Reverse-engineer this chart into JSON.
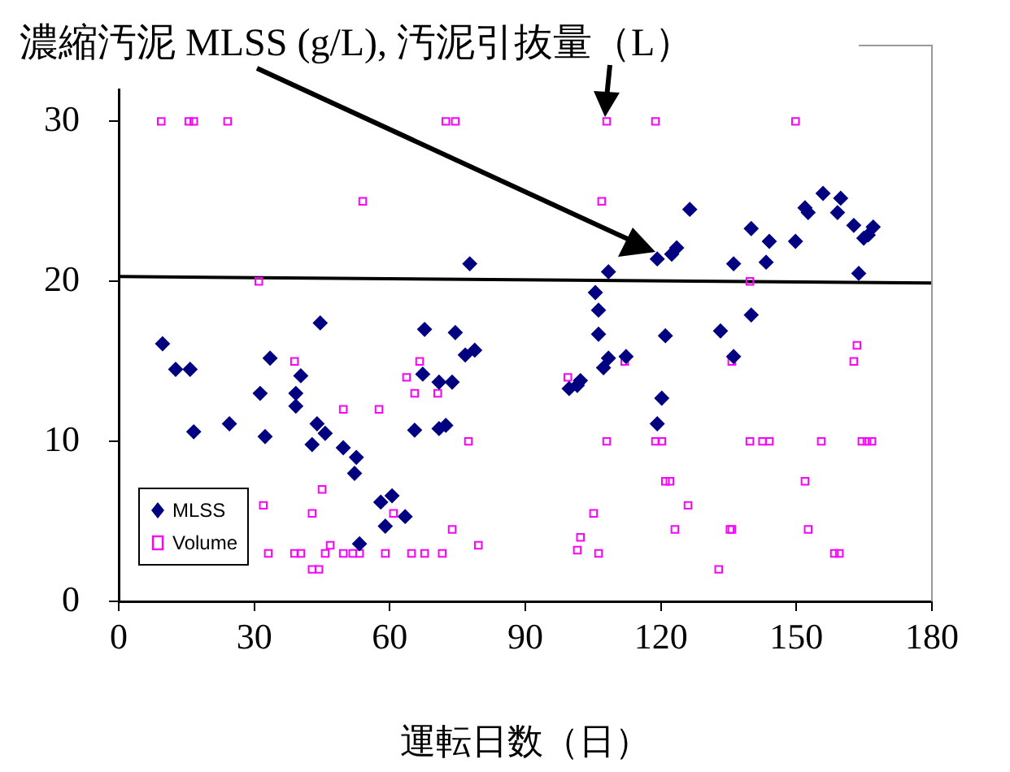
{
  "chart_data": {
    "type": "scatter",
    "title": "濃縮汚泥 MLSS (g/L), 汚泥引抜量（L）",
    "xlabel": "運転日数（日）",
    "xlim": [
      0,
      180
    ],
    "xticks": [
      0,
      30,
      60,
      90,
      120,
      150,
      180
    ],
    "ylim": [
      0,
      32
    ],
    "yticks": [
      0,
      10,
      20,
      30
    ],
    "grid": false,
    "legend": "bottom left",
    "series": [
      {
        "name": "MLSS",
        "color": "#000080",
        "marker": "diamond",
        "x": [
          9.7,
          12.6,
          15.8,
          16.6,
          24.5,
          31.3,
          33.5,
          32.4,
          39.2,
          39.2,
          40.3,
          42.8,
          43.9,
          44.6,
          45.7,
          49.7,
          52.2,
          52.6,
          53.3,
          58,
          59,
          60.5,
          63.4,
          65.5,
          67.3,
          67.7,
          70.9,
          72.4,
          70.9,
          73.8,
          74.5,
          76.7,
          77.7,
          78.8,
          99.7,
          101.5,
          102.2,
          105.5,
          106.2,
          106.2,
          107.3,
          108.4,
          108.4,
          112.3,
          119.2,
          120.2,
          119.2,
          121,
          122.4,
          123.5,
          126.4,
          133.2,
          136.1,
          136.1,
          140,
          140,
          143.3,
          144,
          149.8,
          151.9,
          152.6,
          155.9,
          159.1,
          159.8,
          162.7,
          163.8,
          164.9,
          165.9,
          167
        ],
        "values": [
          16.1,
          14.5,
          14.5,
          10.6,
          11.1,
          13.0,
          15.2,
          10.3,
          13.0,
          12.2,
          14.1,
          9.8,
          11.1,
          17.4,
          10.5,
          9.6,
          8.0,
          9.0,
          3.6,
          6.2,
          4.7,
          6.6,
          5.3,
          10.7,
          14.2,
          17.0,
          10.8,
          11.0,
          13.7,
          13.7,
          16.8,
          15.4,
          21.1,
          15.7,
          13.3,
          13.5,
          13.8,
          19.3,
          18.2,
          16.7,
          14.6,
          15.2,
          20.6,
          15.3,
          21.4,
          12.7,
          11.1,
          16.6,
          21.7,
          22.1,
          24.5,
          16.9,
          15.3,
          21.1,
          23.3,
          17.9,
          21.2,
          22.5,
          22.5,
          24.6,
          24.3,
          25.5,
          24.3,
          25.2,
          23.5,
          20.5,
          22.7,
          22.9,
          23.4
        ]
      },
      {
        "name": "Volume",
        "color": "#ff00ff",
        "marker": "square",
        "x": [
          9.4,
          15.5,
          16.6,
          24.1,
          31,
          38.9,
          32,
          45,
          42.8,
          33.1,
          38.9,
          40.3,
          42.8,
          44.3,
          45.7,
          72.4,
          74.5,
          54,
          66.6,
          63.7,
          65.5,
          70.6,
          49.7,
          57.6,
          77.4,
          60.8,
          73.8,
          79.6,
          46.8,
          49.7,
          51.8,
          53.3,
          59,
          64.8,
          67.7,
          71.6,
          108,
          118.8,
          106.9,
          99.4,
          112,
          108,
          118.8,
          120.2,
          121,
          122,
          126,
          105.1,
          102.2,
          123.1,
          101.5,
          106.2,
          132.8,
          135.3,
          149.8,
          139.7,
          163.4,
          162.7,
          135.7,
          139.7,
          142.5,
          144,
          155.5,
          164.5,
          165.6,
          166.7,
          151.9,
          135.7,
          152.6,
          158.4,
          159.5
        ],
        "values": [
          30,
          30,
          30,
          30,
          20,
          15,
          6,
          7,
          5.5,
          3,
          3,
          3,
          2,
          2,
          3,
          30,
          30,
          25,
          15,
          14,
          13,
          13,
          12,
          12,
          10,
          5.5,
          4.5,
          3.5,
          3.5,
          3,
          3,
          3,
          3,
          3,
          3,
          3,
          30,
          30,
          25,
          14,
          15,
          10,
          10,
          10,
          7.5,
          7.5,
          6,
          5.5,
          4,
          4.5,
          3.2,
          3,
          2,
          4.5,
          30,
          20,
          16,
          15,
          15,
          10,
          10,
          10,
          10,
          10,
          10,
          10,
          7.5,
          4.5,
          4.5,
          3,
          3
        ]
      },
      {
        "type": "line",
        "color": "#000000",
        "marker": "none",
        "x": [
          0,
          180
        ],
        "values": [
          20.3,
          19.9
        ]
      }
    ]
  }
}
